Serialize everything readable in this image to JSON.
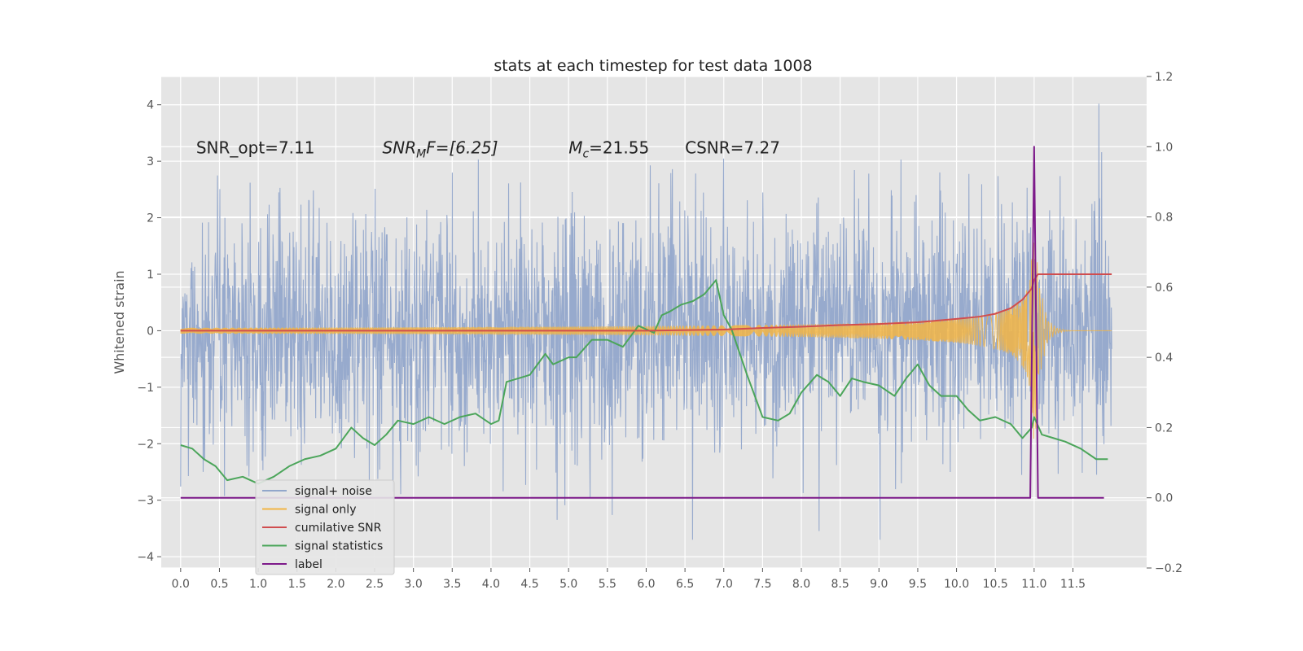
{
  "chart_data": {
    "type": "line",
    "title": "stats at each timestep for test data 1008",
    "ylabel": "Whitened strain",
    "xlim": [
      -0.25,
      12.45
    ],
    "ylim": [
      -4.2,
      4.5
    ],
    "y2lim": [
      -0.2,
      1.2
    ],
    "xticks": [
      "0.0",
      "0.5",
      "1.0",
      "1.5",
      "2.0",
      "2.5",
      "3.0",
      "3.5",
      "4.0",
      "4.5",
      "5.0",
      "5.5",
      "6.0",
      "6.5",
      "7.0",
      "7.5",
      "8.0",
      "8.5",
      "9.0",
      "9.5",
      "10.0",
      "10.5",
      "11.0",
      "11.5"
    ],
    "yticks": [
      "4",
      "3",
      "2",
      "1",
      "0",
      "−1",
      "−2",
      "−3",
      "−4"
    ],
    "y2ticks": [
      "1.2",
      "1.0",
      "0.8",
      "0.6",
      "0.4",
      "0.2",
      "0.0",
      "−0.2"
    ],
    "grid": true,
    "legend_position": "lower-left",
    "annotations": [
      {
        "x": 0.2,
        "y": 3.2,
        "text": "SNR_opt=7.11"
      },
      {
        "x": 2.6,
        "y": 3.2,
        "text_main": "SNR",
        "text_sub": "M",
        "text_rest": "F=[6.25]"
      },
      {
        "x": 5.0,
        "y": 3.2,
        "text_main": "M",
        "text_sub": "c",
        "text_rest": "=21.55"
      },
      {
        "x": 6.5,
        "y": 3.2,
        "text": "CSNR=7.27"
      }
    ],
    "series": [
      {
        "name": "signal+ noise",
        "axis": "left",
        "color": "#92a7cb",
        "type": "noise",
        "x_range": [
          0,
          12.0
        ],
        "amplitude_range": [
          -3.7,
          4.1
        ]
      },
      {
        "name": "signal only",
        "axis": "left",
        "color": "#f2b544",
        "type": "chirp",
        "x_range": [
          0,
          11.0
        ],
        "peak_amplitude": 2.3,
        "x_peak": 11.0
      },
      {
        "name": "cumilative SNR",
        "axis": "left",
        "color": "#d04d4f",
        "x": [
          0,
          6.0,
          7.0,
          7.5,
          8.0,
          8.5,
          9.0,
          9.5,
          10.0,
          10.3,
          10.5,
          10.7,
          10.85,
          10.97,
          11.0,
          11.05,
          12.0
        ],
        "values": [
          0.0,
          0.0,
          0.02,
          0.05,
          0.07,
          0.1,
          0.12,
          0.15,
          0.21,
          0.25,
          0.3,
          0.4,
          0.55,
          0.75,
          0.9,
          1.0,
          1.0
        ]
      },
      {
        "name": "signal statistics",
        "axis": "right",
        "color": "#4ba55a",
        "x": [
          0.0,
          0.15,
          0.3,
          0.45,
          0.6,
          0.8,
          1.0,
          1.2,
          1.4,
          1.6,
          1.8,
          2.0,
          2.2,
          2.35,
          2.5,
          2.65,
          2.8,
          3.0,
          3.2,
          3.4,
          3.6,
          3.8,
          4.0,
          4.1,
          4.2,
          4.35,
          4.5,
          4.6,
          4.7,
          4.8,
          5.0,
          5.1,
          5.3,
          5.5,
          5.7,
          5.9,
          6.0,
          6.1,
          6.2,
          6.3,
          6.45,
          6.6,
          6.75,
          6.9,
          7.0,
          7.1,
          7.3,
          7.5,
          7.7,
          7.85,
          8.0,
          8.2,
          8.35,
          8.5,
          8.65,
          8.8,
          9.0,
          9.2,
          9.35,
          9.5,
          9.65,
          9.8,
          10.0,
          10.15,
          10.3,
          10.5,
          10.7,
          10.85,
          10.97,
          11.0,
          11.1,
          11.25,
          11.4,
          11.6,
          11.8,
          11.95
        ],
        "values": [
          0.15,
          0.14,
          0.11,
          0.09,
          0.05,
          0.06,
          0.04,
          0.06,
          0.09,
          0.11,
          0.12,
          0.14,
          0.2,
          0.17,
          0.15,
          0.18,
          0.22,
          0.21,
          0.23,
          0.21,
          0.23,
          0.24,
          0.21,
          0.22,
          0.33,
          0.34,
          0.35,
          0.38,
          0.41,
          0.38,
          0.4,
          0.4,
          0.45,
          0.45,
          0.43,
          0.49,
          0.48,
          0.47,
          0.52,
          0.53,
          0.55,
          0.56,
          0.58,
          0.62,
          0.52,
          0.48,
          0.35,
          0.23,
          0.22,
          0.24,
          0.3,
          0.35,
          0.33,
          0.29,
          0.34,
          0.33,
          0.32,
          0.29,
          0.34,
          0.38,
          0.32,
          0.29,
          0.29,
          0.25,
          0.22,
          0.23,
          0.21,
          0.17,
          0.2,
          0.23,
          0.18,
          0.17,
          0.16,
          0.14,
          0.11,
          0.11
        ]
      },
      {
        "name": "label",
        "axis": "right",
        "color": "#7d1a8a",
        "x": [
          0.0,
          10.95,
          11.0,
          11.05,
          11.9
        ],
        "values": [
          0.0,
          0.0,
          1.0,
          0.0,
          0.0
        ]
      }
    ]
  }
}
